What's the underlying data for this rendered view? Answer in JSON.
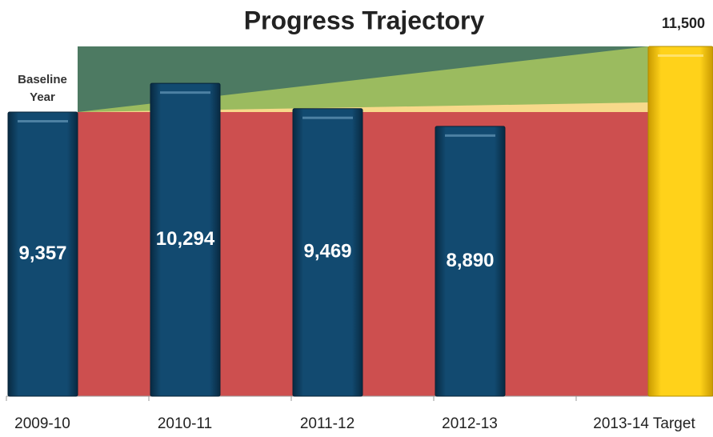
{
  "chart_data": {
    "type": "bar",
    "title": "Progress Trajectory",
    "categories": [
      "2009-10",
      "2010-11",
      "2011-12",
      "2012-13",
      "2013-14 Target"
    ],
    "values": [
      9357,
      10294,
      9469,
      8890,
      11500
    ],
    "value_labels": [
      "9,357",
      "10,294",
      "9,469",
      "8,890",
      "11,500"
    ],
    "colors": [
      "#0e3c5c",
      "#0e3c5c",
      "#0e3c5c",
      "#0e3c5c",
      "#f2c200"
    ],
    "annotation": [
      "Baseline",
      "Year"
    ],
    "ylim": [
      0,
      11500
    ]
  }
}
